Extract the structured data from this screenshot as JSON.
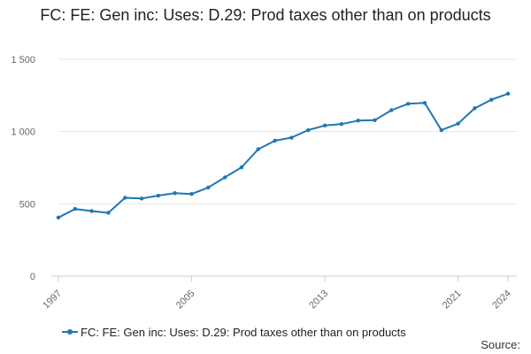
{
  "chart_data": {
    "type": "line",
    "title": "FC: FE: Gen inc: Uses: D.29: Prod taxes other than on products",
    "xlabel": "",
    "ylabel": "",
    "x": [
      1997,
      1998,
      1999,
      2000,
      2001,
      2002,
      2003,
      2004,
      2005,
      2006,
      2007,
      2008,
      2009,
      2010,
      2011,
      2012,
      2013,
      2014,
      2015,
      2016,
      2017,
      2018,
      2019,
      2020,
      2021,
      2022,
      2023,
      2024
    ],
    "xlim": [
      1997,
      2024
    ],
    "x_ticks": [
      1997,
      2005,
      2013,
      2021,
      2024
    ],
    "x_tick_labels": [
      "1997",
      "2005",
      "2013",
      "2021",
      "2024"
    ],
    "ylim": [
      0,
      1500
    ],
    "y_ticks": [
      0,
      500,
      1000,
      1500
    ],
    "y_tick_labels": [
      "0",
      "500",
      "1 000",
      "1 500"
    ],
    "grid": true,
    "legend_position": "bottom",
    "series": [
      {
        "name": "FC: FE: Gen inc: Uses: D.29: Prod taxes other than on products",
        "color": "#1f77b4",
        "values": [
          405,
          465,
          450,
          438,
          542,
          537,
          557,
          574,
          568,
          613,
          683,
          753,
          878,
          937,
          958,
          1010,
          1042,
          1052,
          1076,
          1079,
          1148,
          1192,
          1198,
          1010,
          1055,
          1161,
          1220,
          1262
        ]
      }
    ]
  },
  "footer": {
    "source_label": "Source:"
  }
}
